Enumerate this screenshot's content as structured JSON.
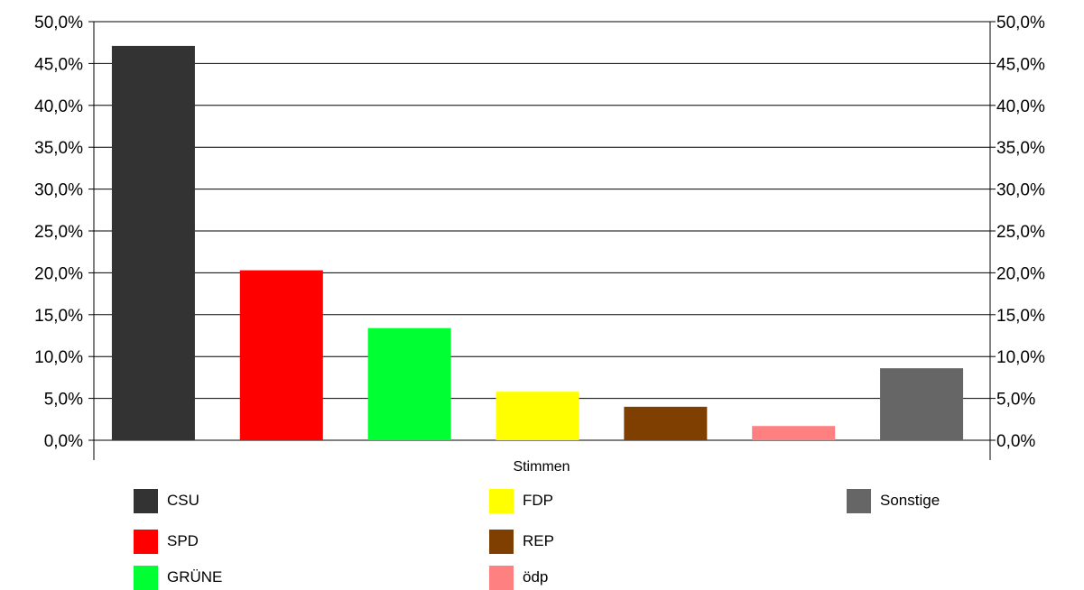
{
  "chart_data": {
    "type": "bar",
    "xlabel": "Stimmen",
    "ylim": [
      0,
      50
    ],
    "yticks": [
      "0,0%",
      "5,0%",
      "10,0%",
      "15,0%",
      "20,0%",
      "25,0%",
      "30,0%",
      "35,0%",
      "40,0%",
      "45,0%",
      "50,0%"
    ],
    "grid": true,
    "secondary_y_axis": true,
    "legend_position": "bottom",
    "series": [
      {
        "name": "CSU",
        "value": 47.1,
        "color": "#333333"
      },
      {
        "name": "SPD",
        "value": 20.3,
        "color": "#ff0000"
      },
      {
        "name": "GRÜNE",
        "value": 13.4,
        "color": "#00ff33"
      },
      {
        "name": "FDP",
        "value": 5.8,
        "color": "#ffff00"
      },
      {
        "name": "REP",
        "value": 4.0,
        "color": "#7f3f00"
      },
      {
        "name": "ödp",
        "value": 1.7,
        "color": "#ff8080"
      },
      {
        "name": "Sonstige",
        "value": 8.6,
        "color": "#666666"
      }
    ]
  }
}
